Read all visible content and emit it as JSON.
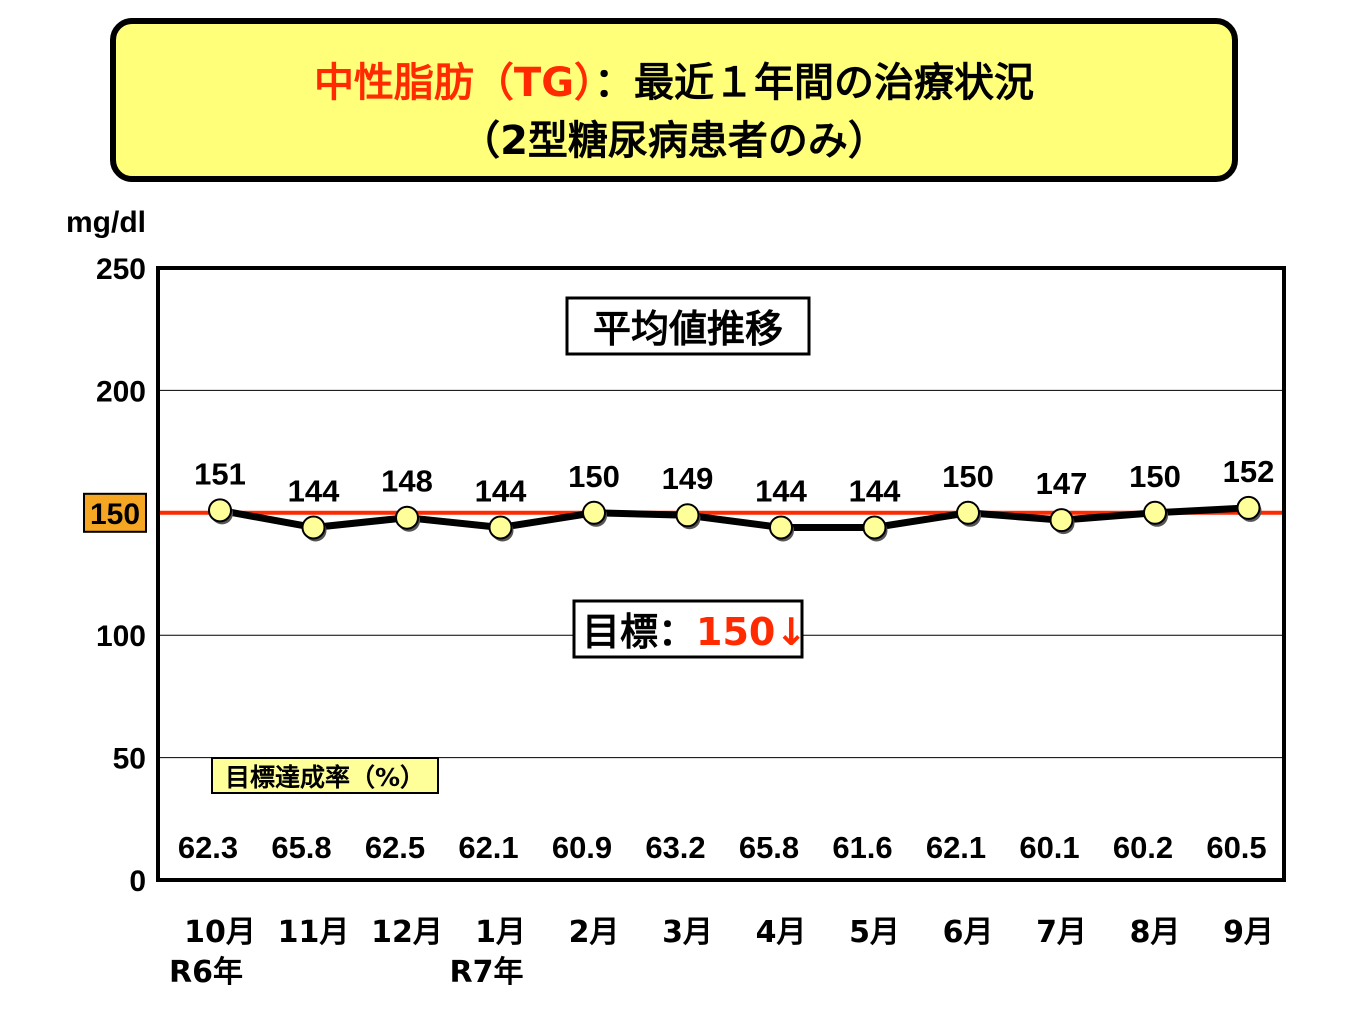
{
  "title": {
    "part_red": "中性脂肪（TG）",
    "part_black": "：最近１年間の治療状況",
    "line2": "（2型糖尿病患者のみ）"
  },
  "colors": {
    "title_bg": "#ffff7a",
    "target_line": "#ff2a00",
    "marker_fill": "#ffff99",
    "badge_fill": "#f5a623",
    "rate_label_bg": "#ffff99"
  },
  "chart_data": {
    "type": "line",
    "ylabel": "mg/dl",
    "ylim": [
      0,
      250
    ],
    "yticks": [
      "0",
      "50",
      "100",
      "150",
      "200",
      "250"
    ],
    "grid": true,
    "categories": [
      "10月",
      "11月",
      "12月",
      "1月",
      "2月",
      "3月",
      "4月",
      "5月",
      "6月",
      "7月",
      "8月",
      "9月"
    ],
    "year_labels": [
      "R6年",
      "",
      "",
      "R7年",
      "",
      "",
      "",
      "",
      "",
      "",
      "",
      ""
    ],
    "series": [
      {
        "values": [
          151,
          144,
          148,
          144,
          150,
          149,
          144,
          144,
          150,
          147,
          150,
          152
        ]
      }
    ],
    "target": {
      "value": 150,
      "badge": "150"
    },
    "inner_title": "平均値推移",
    "target_label": {
      "prefix": "目標：",
      "value": "150↓"
    },
    "rate_label": "目標達成率（%）",
    "rates": [
      "62.3",
      "65.8",
      "62.5",
      "62.1",
      "60.9",
      "63.2",
      "65.8",
      "61.6",
      "62.1",
      "60.1",
      "60.2",
      "60.5"
    ]
  }
}
